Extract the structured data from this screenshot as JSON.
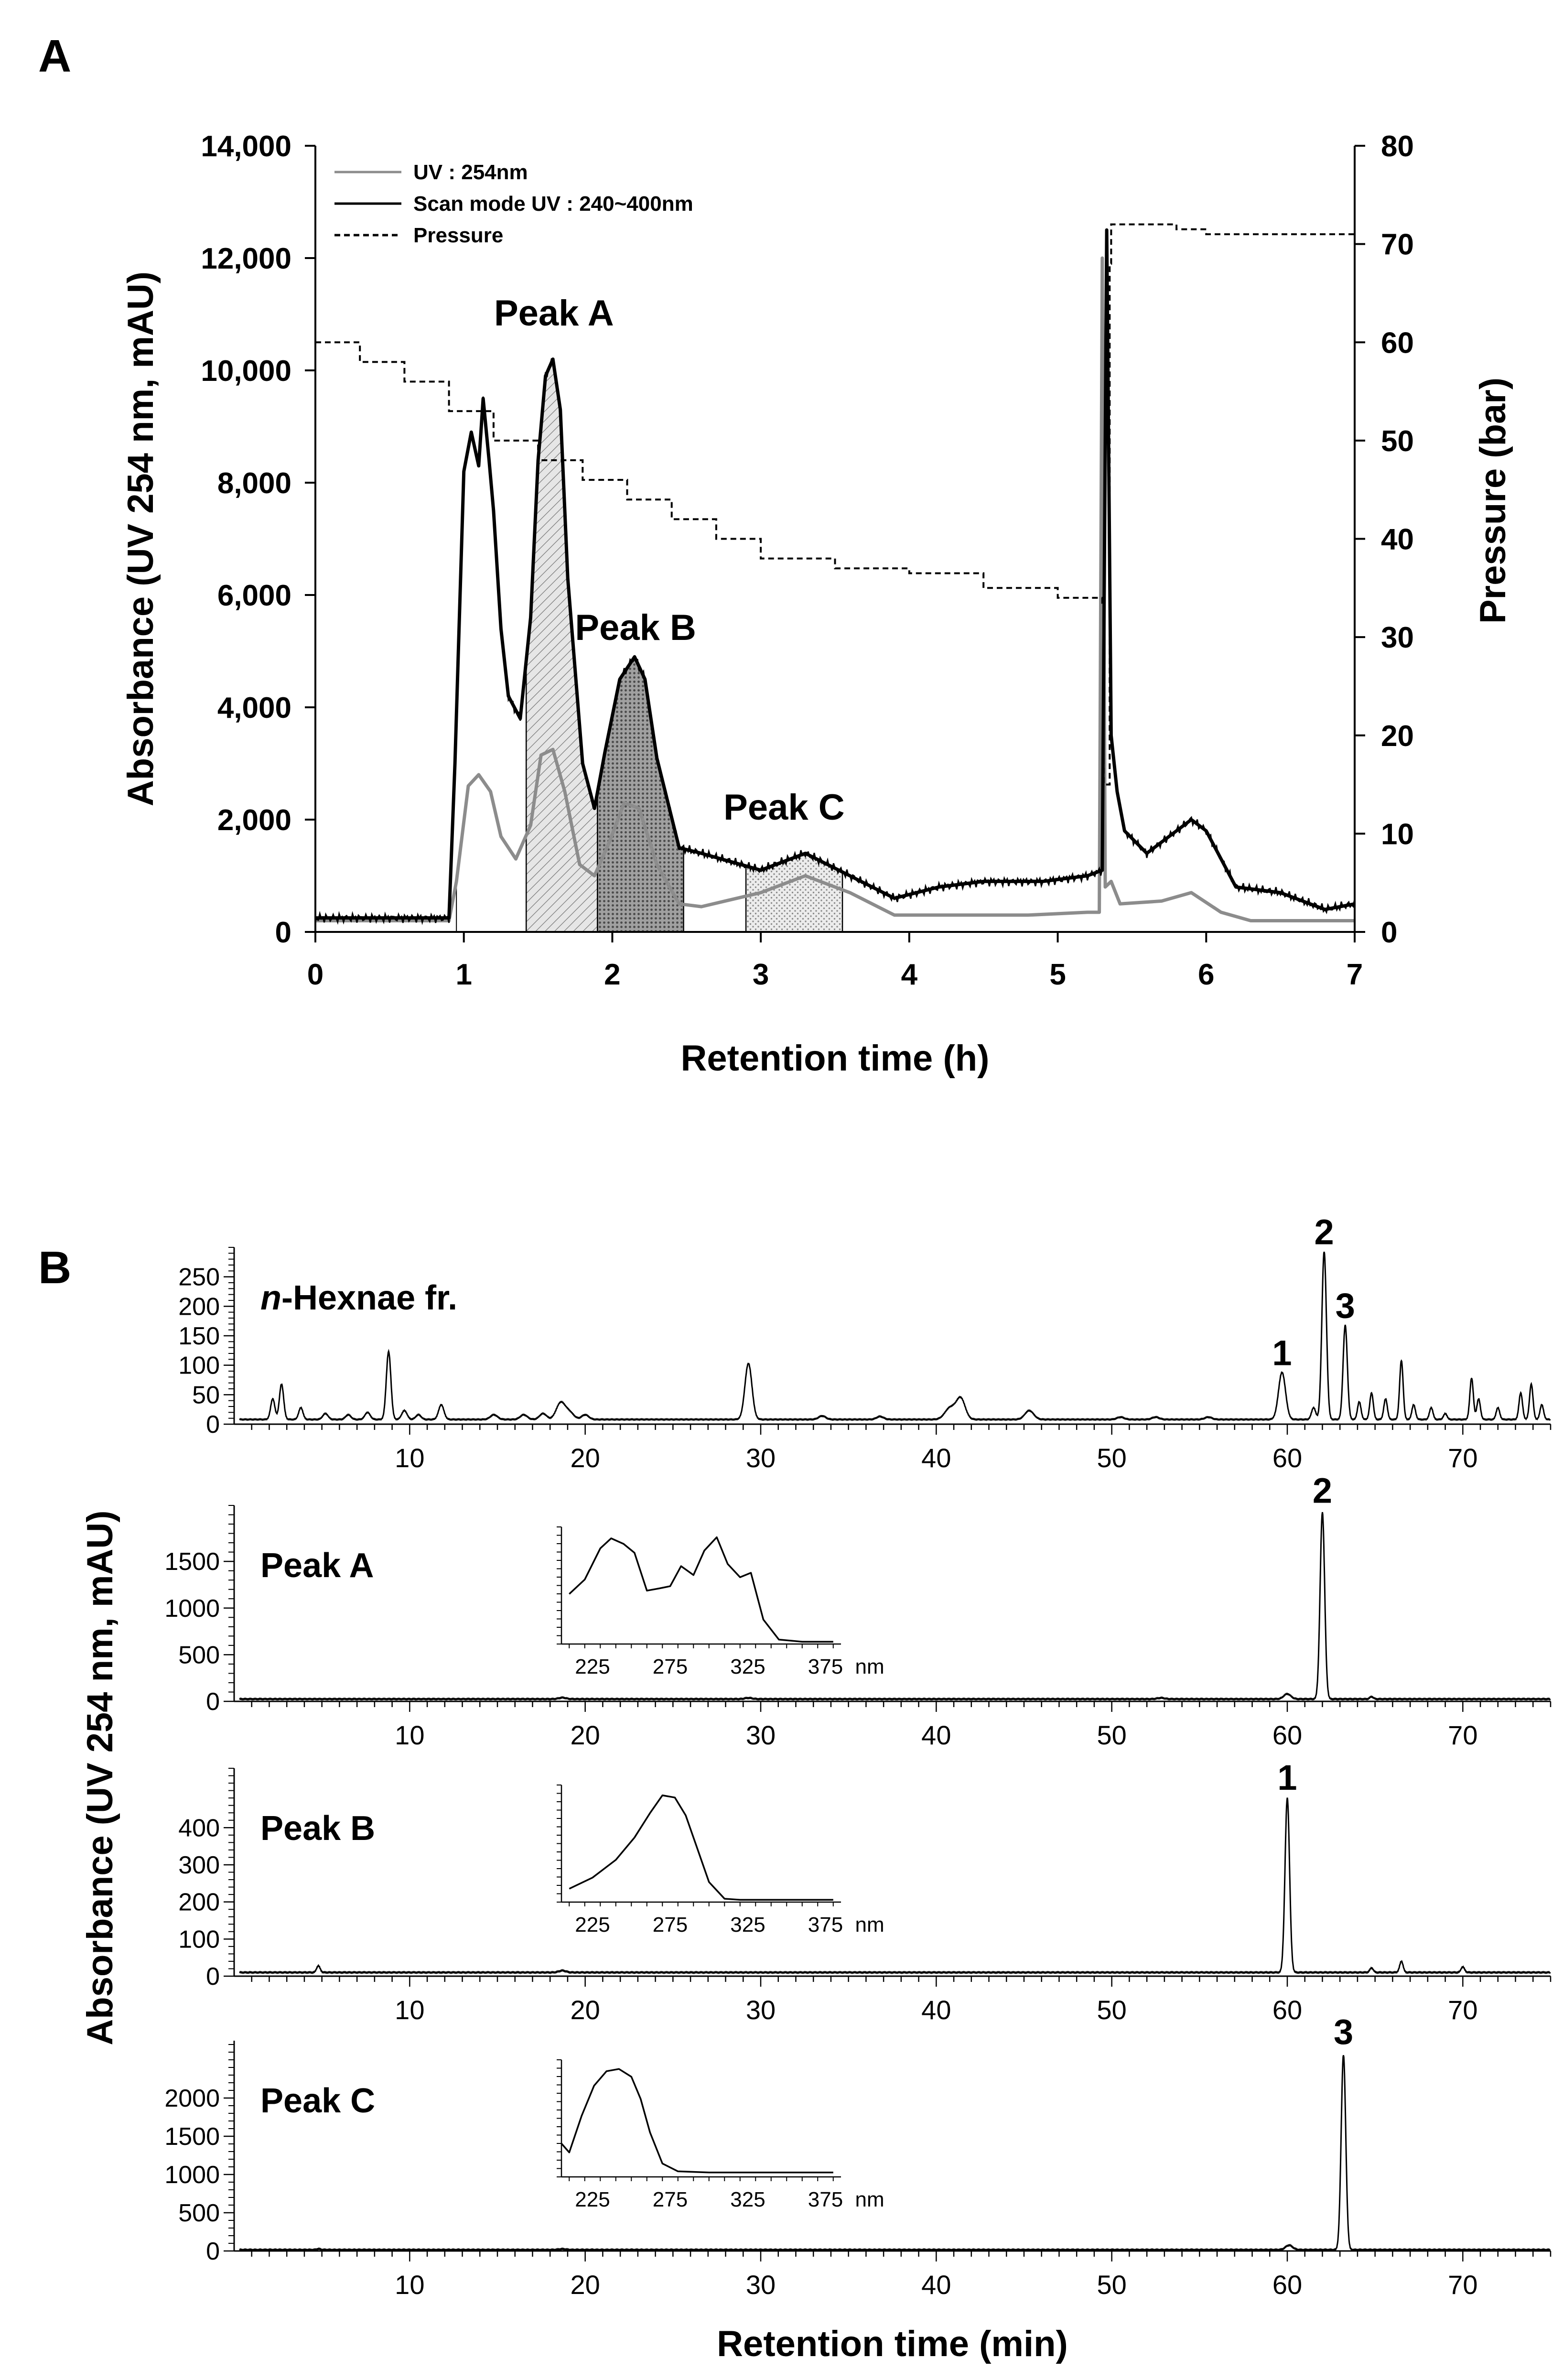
{
  "panel_a": {
    "letter": "A",
    "chart_data": {
      "type": "line",
      "title": "",
      "xlabel": "Retention time (h)",
      "ylabel": "Absorbance (UV 254 nm, mAU)",
      "y2label": "Pressure (bar)",
      "xlim": [
        0,
        7
      ],
      "ylim": [
        0,
        14000
      ],
      "y2lim": [
        0,
        80
      ],
      "x_ticks": [
        0,
        1,
        2,
        3,
        4,
        5,
        6,
        7
      ],
      "y_ticks": [
        0,
        2000,
        4000,
        6000,
        8000,
        10000,
        12000,
        14000
      ],
      "y_tick_labels": [
        "0",
        "2,000",
        "4,000",
        "6,000",
        "8,000",
        "10,000",
        "12,000",
        "14,000"
      ],
      "y2_ticks": [
        0,
        10,
        20,
        30,
        40,
        50,
        60,
        70,
        80
      ],
      "legend": [
        "UV : 254nm",
        "Scan mode UV : 240~400nm",
        "Pressure"
      ],
      "legend_position": "top-left",
      "peak_labels": [
        {
          "text": "Peak A",
          "x": 1.8,
          "y": 10800
        },
        {
          "text": "Peak B",
          "x": 2.35,
          "y": 5200
        },
        {
          "text": "Peak C",
          "x": 3.35,
          "y": 2000
        }
      ],
      "fractions": [
        {
          "name": "Peak A",
          "from": 1.42,
          "to": 1.9
        },
        {
          "name": "Peak B",
          "from": 1.9,
          "to": 2.48
        },
        {
          "name": "Peak C",
          "from": 2.9,
          "to": 3.55
        }
      ],
      "series": [
        {
          "name": "UV : 254nm",
          "color": "#8c8c8c",
          "x": [
            0,
            0.9,
            0.95,
            1.03,
            1.1,
            1.18,
            1.25,
            1.35,
            1.45,
            1.52,
            1.6,
            1.68,
            1.78,
            1.88,
            1.98,
            2.08,
            2.18,
            2.3,
            2.45,
            2.6,
            3.0,
            3.3,
            3.6,
            3.9,
            4.3,
            4.8,
            5.2,
            5.28,
            5.3,
            5.32,
            5.36,
            5.42,
            5.7,
            5.9,
            6.1,
            6.3,
            7.0
          ],
          "y": [
            200,
            200,
            900,
            2600,
            2800,
            2500,
            1700,
            1300,
            1900,
            3150,
            3250,
            2500,
            1200,
            1000,
            1600,
            2300,
            2200,
            1200,
            500,
            450,
            700,
            1000,
            700,
            300,
            300,
            300,
            350,
            350,
            12000,
            800,
            900,
            500,
            550,
            700,
            350,
            200,
            200
          ]
        },
        {
          "name": "Scan mode UV : 240~400nm",
          "color": "#000000",
          "x": [
            0,
            0.9,
            0.94,
            1.0,
            1.05,
            1.1,
            1.13,
            1.17,
            1.2,
            1.25,
            1.3,
            1.38,
            1.45,
            1.5,
            1.55,
            1.6,
            1.65,
            1.7,
            1.8,
            1.88,
            1.95,
            2.05,
            2.15,
            2.22,
            2.3,
            2.45,
            2.6,
            3.0,
            3.3,
            3.6,
            3.9,
            4.2,
            4.5,
            4.9,
            5.2,
            5.3,
            5.33,
            5.36,
            5.4,
            5.45,
            5.6,
            5.8,
            5.9,
            6.0,
            6.2,
            6.5,
            6.8,
            7.0
          ],
          "y": [
            250,
            250,
            3000,
            8200,
            8900,
            8300,
            9500,
            8400,
            7500,
            5400,
            4200,
            3800,
            5600,
            8400,
            9900,
            10200,
            9300,
            6300,
            3000,
            2200,
            3200,
            4500,
            4900,
            4500,
            3100,
            1500,
            1400,
            1100,
            1400,
            1000,
            600,
            800,
            900,
            900,
            1000,
            1100,
            12500,
            3500,
            2500,
            1800,
            1400,
            1800,
            2000,
            1800,
            800,
            700,
            400,
            500
          ]
        },
        {
          "name": "Pressure",
          "color": "#000000",
          "dash": true,
          "axis": "y2",
          "x": [
            0,
            0.3,
            0.6,
            0.9,
            1.2,
            1.5,
            1.8,
            2.1,
            2.4,
            2.7,
            3.0,
            3.5,
            4.0,
            4.5,
            5.0,
            5.3,
            5.31,
            5.35,
            5.36,
            5.6,
            5.8,
            6.0,
            6.5,
            7.0
          ],
          "y": [
            60,
            58,
            56,
            53,
            50,
            48,
            46,
            44,
            42,
            40,
            38,
            37,
            36.5,
            35,
            34,
            33.5,
            15,
            68,
            72,
            72,
            71.5,
            71,
            71,
            71
          ]
        }
      ]
    }
  },
  "panel_b": {
    "letter": "B",
    "ylabel": "Absorbance (UV 254 nm, mAU)",
    "xlabel": "Retention time (min)",
    "inset_unit": "nm",
    "chart_data": [
      {
        "type": "line",
        "label": "n-Hexnae fr.",
        "label_italic": "n",
        "label_rest": "-Hexnae fr.",
        "xlim": [
          0,
          75
        ],
        "ylim": [
          0,
          300
        ],
        "x_ticks": [
          10,
          20,
          30,
          40,
          50,
          60,
          70
        ],
        "y_ticks": [
          0,
          50,
          100,
          150,
          200,
          250
        ],
        "baseline": 8,
        "peaks": [
          [
            2.2,
            35,
            0.12
          ],
          [
            2.7,
            60,
            0.12
          ],
          [
            3.8,
            20,
            0.12
          ],
          [
            5.2,
            10,
            0.15
          ],
          [
            6.5,
            8,
            0.15
          ],
          [
            7.6,
            12,
            0.15
          ],
          [
            8.8,
            115,
            0.13
          ],
          [
            9.7,
            15,
            0.15
          ],
          [
            10.5,
            8,
            0.15
          ],
          [
            11.8,
            25,
            0.15
          ],
          [
            14.8,
            8,
            0.2
          ],
          [
            16.5,
            8,
            0.2
          ],
          [
            17.6,
            10,
            0.2
          ],
          [
            18.6,
            28,
            0.25
          ],
          [
            19.1,
            12,
            0.25
          ],
          [
            20.0,
            8,
            0.2
          ],
          [
            29.3,
            95,
            0.2
          ],
          [
            33.5,
            6,
            0.2
          ],
          [
            36.8,
            5,
            0.2
          ],
          [
            40.8,
            20,
            0.3
          ],
          [
            41.4,
            35,
            0.25
          ],
          [
            45.3,
            15,
            0.25
          ],
          [
            50.5,
            4,
            0.2
          ],
          [
            52.5,
            4,
            0.2
          ],
          [
            55.5,
            4,
            0.2
          ],
          [
            59.7,
            80,
            0.2
          ],
          [
            61.5,
            20,
            0.12
          ],
          [
            62.1,
            285,
            0.13
          ],
          [
            63.3,
            160,
            0.12
          ],
          [
            64.1,
            30,
            0.1
          ],
          [
            64.8,
            45,
            0.1
          ],
          [
            65.6,
            35,
            0.1
          ],
          [
            66.5,
            100,
            0.1
          ],
          [
            67.2,
            25,
            0.1
          ],
          [
            68.2,
            20,
            0.1
          ],
          [
            69.0,
            10,
            0.1
          ],
          [
            70.5,
            70,
            0.1
          ],
          [
            70.9,
            35,
            0.1
          ],
          [
            72.0,
            20,
            0.1
          ],
          [
            73.3,
            45,
            0.1
          ],
          [
            73.9,
            60,
            0.1
          ],
          [
            74.5,
            25,
            0.1
          ]
        ],
        "peak_numbers": [
          {
            "text": "1",
            "x": 59.7,
            "y": 80
          },
          {
            "text": "2",
            "x": 62.1,
            "y": 285
          },
          {
            "text": "3",
            "x": 63.3,
            "y": 160
          }
        ]
      },
      {
        "type": "line",
        "label": "Peak A",
        "xlim": [
          0,
          75
        ],
        "ylim": [
          0,
          2100
        ],
        "x_ticks": [
          10,
          20,
          30,
          40,
          50,
          60,
          70
        ],
        "y_ticks": [
          0,
          500,
          1000,
          1500
        ],
        "baseline": 25,
        "peaks": [
          [
            18.7,
            15,
            0.2
          ],
          [
            29.3,
            12,
            0.2
          ],
          [
            52.8,
            12,
            0.2
          ],
          [
            60.0,
            55,
            0.2
          ],
          [
            62.0,
            2000,
            0.13
          ],
          [
            64.8,
            25,
            0.1
          ]
        ],
        "peak_numbers": [
          {
            "text": "2",
            "x": 62.0,
            "y": 2000
          }
        ],
        "inset": {
          "x": [
            210,
            220,
            230,
            237,
            245,
            252,
            260,
            268,
            275,
            282,
            290,
            297,
            305,
            312,
            320,
            327,
            335,
            345,
            360,
            380
          ],
          "y": [
            0.45,
            0.58,
            0.86,
            0.95,
            0.9,
            0.82,
            0.48,
            0.5,
            0.52,
            0.7,
            0.62,
            0.84,
            0.96,
            0.72,
            0.6,
            0.64,
            0.22,
            0.04,
            0.02,
            0.02
          ],
          "x_ticks": [
            225,
            275,
            325,
            375
          ]
        }
      },
      {
        "type": "line",
        "label": "Peak B",
        "xlim": [
          0,
          75
        ],
        "ylim": [
          0,
          560
        ],
        "x_ticks": [
          10,
          20,
          30,
          40,
          50,
          60,
          70
        ],
        "y_ticks": [
          0,
          100,
          200,
          300,
          400
        ],
        "baseline": 10,
        "peaks": [
          [
            4.8,
            18,
            0.1
          ],
          [
            18.7,
            5,
            0.2
          ],
          [
            60.0,
            470,
            0.13
          ],
          [
            64.8,
            12,
            0.1
          ],
          [
            66.5,
            30,
            0.1
          ],
          [
            70.0,
            15,
            0.1
          ]
        ],
        "peak_numbers": [
          {
            "text": "1",
            "x": 60.0,
            "y": 470
          }
        ],
        "inset": {
          "x": [
            210,
            225,
            240,
            252,
            262,
            270,
            278,
            285,
            292,
            300,
            310,
            320,
            340,
            380
          ],
          "y": [
            0.12,
            0.22,
            0.38,
            0.58,
            0.8,
            0.96,
            0.94,
            0.78,
            0.5,
            0.18,
            0.03,
            0.02,
            0.02,
            0.02
          ],
          "x_ticks": [
            225,
            275,
            325,
            375
          ]
        }
      },
      {
        "type": "line",
        "label": "Peak C",
        "xlim": [
          0,
          75
        ],
        "ylim": [
          0,
          2750
        ],
        "x_ticks": [
          10,
          20,
          30,
          40,
          50,
          60,
          70
        ],
        "y_ticks": [
          0,
          500,
          1000,
          1500,
          2000
        ],
        "baseline": 15,
        "peaks": [
          [
            4.8,
            12,
            0.1
          ],
          [
            18.7,
            10,
            0.2
          ],
          [
            60.1,
            60,
            0.2
          ],
          [
            63.2,
            2550,
            0.13
          ]
        ],
        "peak_numbers": [
          {
            "text": "3",
            "x": 63.2,
            "y": 2550
          }
        ],
        "inset": {
          "x": [
            205,
            210,
            218,
            226,
            234,
            242,
            250,
            256,
            262,
            270,
            280,
            300,
            340,
            380
          ],
          "y": [
            0.3,
            0.22,
            0.55,
            0.82,
            0.95,
            0.97,
            0.9,
            0.7,
            0.4,
            0.12,
            0.05,
            0.04,
            0.04,
            0.04
          ],
          "x_ticks": [
            225,
            275,
            325,
            375
          ]
        }
      }
    ]
  }
}
